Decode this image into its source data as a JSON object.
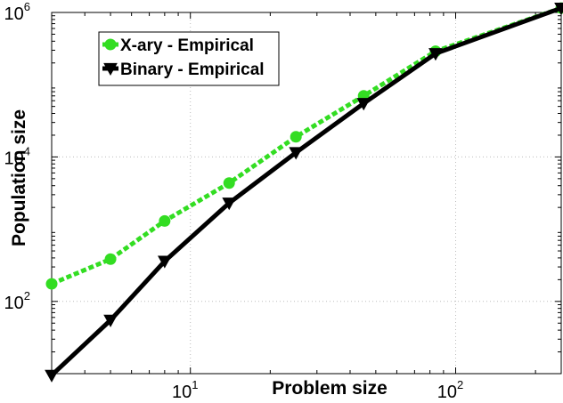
{
  "chart_data": {
    "type": "line",
    "xlabel": "Problem size",
    "ylabel": "Population size",
    "xscale": "log",
    "yscale": "log",
    "xlim": [
      3,
      250
    ],
    "ylim": [
      10,
      1000000
    ],
    "grid": true,
    "legend_position": "top-left",
    "x_ticks": [
      {
        "value": 10,
        "base": "10",
        "exp": "1"
      },
      {
        "value": 100,
        "base": "10",
        "exp": "2"
      }
    ],
    "y_ticks": [
      {
        "value": 100,
        "base": "10",
        "exp": "2"
      },
      {
        "value": 10000,
        "base": "10",
        "exp": "4"
      },
      {
        "value": 1000000,
        "base": "10",
        "exp": "6"
      }
    ],
    "series": [
      {
        "name": "X-ary - Empirical",
        "color": "#33dd22",
        "line_style": "dashed",
        "marker": "circle",
        "x": [
          3,
          5,
          8,
          14,
          25,
          45,
          84,
          250
        ],
        "y": [
          175,
          385,
          1300,
          4350,
          19000,
          70000,
          290000,
          1150000
        ]
      },
      {
        "name": "Binary - Empirical",
        "color": "#000000",
        "line_style": "solid",
        "marker": "triangle-down",
        "x": [
          3,
          5,
          8,
          14,
          25,
          45,
          84,
          250
        ],
        "y": [
          9.5,
          55,
          360,
          2300,
          11500,
          55000,
          270000,
          1150000
        ]
      }
    ]
  }
}
